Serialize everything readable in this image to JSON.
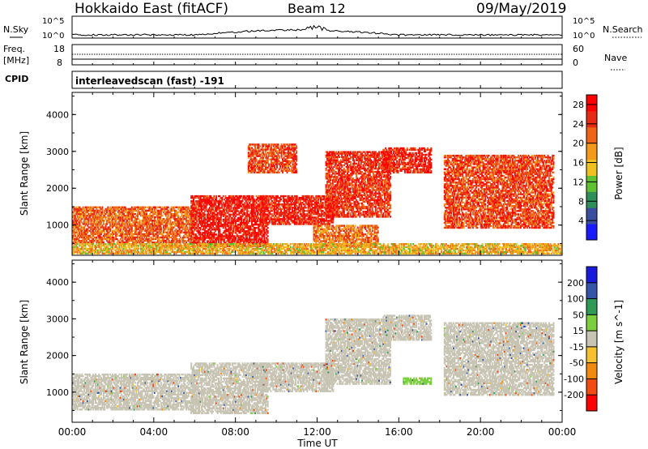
{
  "header": {
    "radar": "Hokkaido East (fitACF)",
    "beam": "Beam 12",
    "date": "09/May/2019"
  },
  "strip": {
    "nsky_label": "N.Sky",
    "nsky_ticks": [
      "10^5",
      "10^0"
    ],
    "nsearch_label": "N.Search",
    "nsearch_ticks": [
      "10^5",
      "10^0"
    ],
    "freq_label": "Freq.",
    "freq_unit": "[MHz]",
    "freq_ticks": [
      "18",
      "8"
    ],
    "nave_label": "Nave",
    "nave_ticks": [
      "60",
      "0"
    ],
    "cpid_label": "CPID",
    "cpid_value": "interleavedscan (fast) -191"
  },
  "colors": {
    "power": [
      "#1a1aff",
      "#3a4ea0",
      "#2e8f5a",
      "#5fc030",
      "#f0c020",
      "#f39a1a",
      "#f06418",
      "#e82a14",
      "#ff0000"
    ],
    "velocity": [
      "#ff0000",
      "#f24a10",
      "#f28a10",
      "#f6c030",
      "#c8c4b4",
      "#7ccf3c",
      "#2f9a55",
      "#3555a8",
      "#1a1add"
    ]
  },
  "chart_data": [
    {
      "type": "heatmap",
      "title": "Power",
      "xlabel": "",
      "ylabel": "Slant Range [km]",
      "x_ticks": [
        "00:00",
        "04:00",
        "08:00",
        "12:00",
        "16:00",
        "20:00",
        "00:00"
      ],
      "xlim_hours": [
        0,
        24
      ],
      "y_ticks": [
        1000,
        2000,
        3000,
        4000
      ],
      "ylim": [
        180,
        4600
      ],
      "colorbar_label": "Power [dB]",
      "colorbar_ticks": [
        4,
        8,
        12,
        16,
        20,
        24,
        28
      ],
      "colorbar_range": [
        0,
        30
      ],
      "echo_regions": [
        {
          "t": [
            0.0,
            6.0
          ],
          "range_km": [
            500,
            1500
          ],
          "value": 22
        },
        {
          "t": [
            5.8,
            9.6
          ],
          "range_km": [
            400,
            1800
          ],
          "value": 27
        },
        {
          "t": [
            8.6,
            11.0
          ],
          "range_km": [
            2400,
            3200
          ],
          "value": 24
        },
        {
          "t": [
            9.2,
            12.8
          ],
          "range_km": [
            1000,
            1800
          ],
          "value": 26
        },
        {
          "t": [
            11.8,
            15.0
          ],
          "range_km": [
            400,
            1000
          ],
          "value": 21
        },
        {
          "t": [
            12.4,
            15.6
          ],
          "range_km": [
            1200,
            3000
          ],
          "value": 25
        },
        {
          "t": [
            15.2,
            17.6
          ],
          "range_km": [
            2400,
            3100
          ],
          "value": 26
        },
        {
          "t": [
            18.2,
            23.6
          ],
          "range_km": [
            900,
            2900
          ],
          "value": 24
        },
        {
          "t": [
            0.0,
            24.0
          ],
          "range_km": [
            200,
            500
          ],
          "value": 17
        }
      ]
    },
    {
      "type": "heatmap",
      "title": "Velocity",
      "xlabel": "Time UT",
      "ylabel": "Slant Range [km]",
      "x_ticks": [
        "00:00",
        "04:00",
        "08:00",
        "12:00",
        "16:00",
        "20:00",
        "00:00"
      ],
      "xlim_hours": [
        0,
        24
      ],
      "y_ticks": [
        1000,
        2000,
        3000,
        4000
      ],
      "ylim": [
        180,
        4600
      ],
      "colorbar_label": "Velocity [m s^-1]",
      "colorbar_ticks": [
        "200",
        "100",
        "50",
        "15",
        "-15",
        "-50",
        "-100",
        "-200"
      ],
      "echo_regions": [
        {
          "t": [
            0.0,
            6.0
          ],
          "range_km": [
            500,
            1500
          ],
          "value": 0
        },
        {
          "t": [
            5.8,
            9.6
          ],
          "range_km": [
            400,
            1800
          ],
          "value": 0
        },
        {
          "t": [
            9.2,
            12.8
          ],
          "range_km": [
            1000,
            1800
          ],
          "value": 0
        },
        {
          "t": [
            12.4,
            15.6
          ],
          "range_km": [
            1200,
            3000
          ],
          "value": 0
        },
        {
          "t": [
            15.2,
            17.6
          ],
          "range_km": [
            2400,
            3100
          ],
          "value": 0
        },
        {
          "t": [
            16.2,
            17.6
          ],
          "range_km": [
            1200,
            1400
          ],
          "value": 40
        },
        {
          "t": [
            18.2,
            23.6
          ],
          "range_km": [
            900,
            2900
          ],
          "value": 0
        }
      ]
    }
  ]
}
